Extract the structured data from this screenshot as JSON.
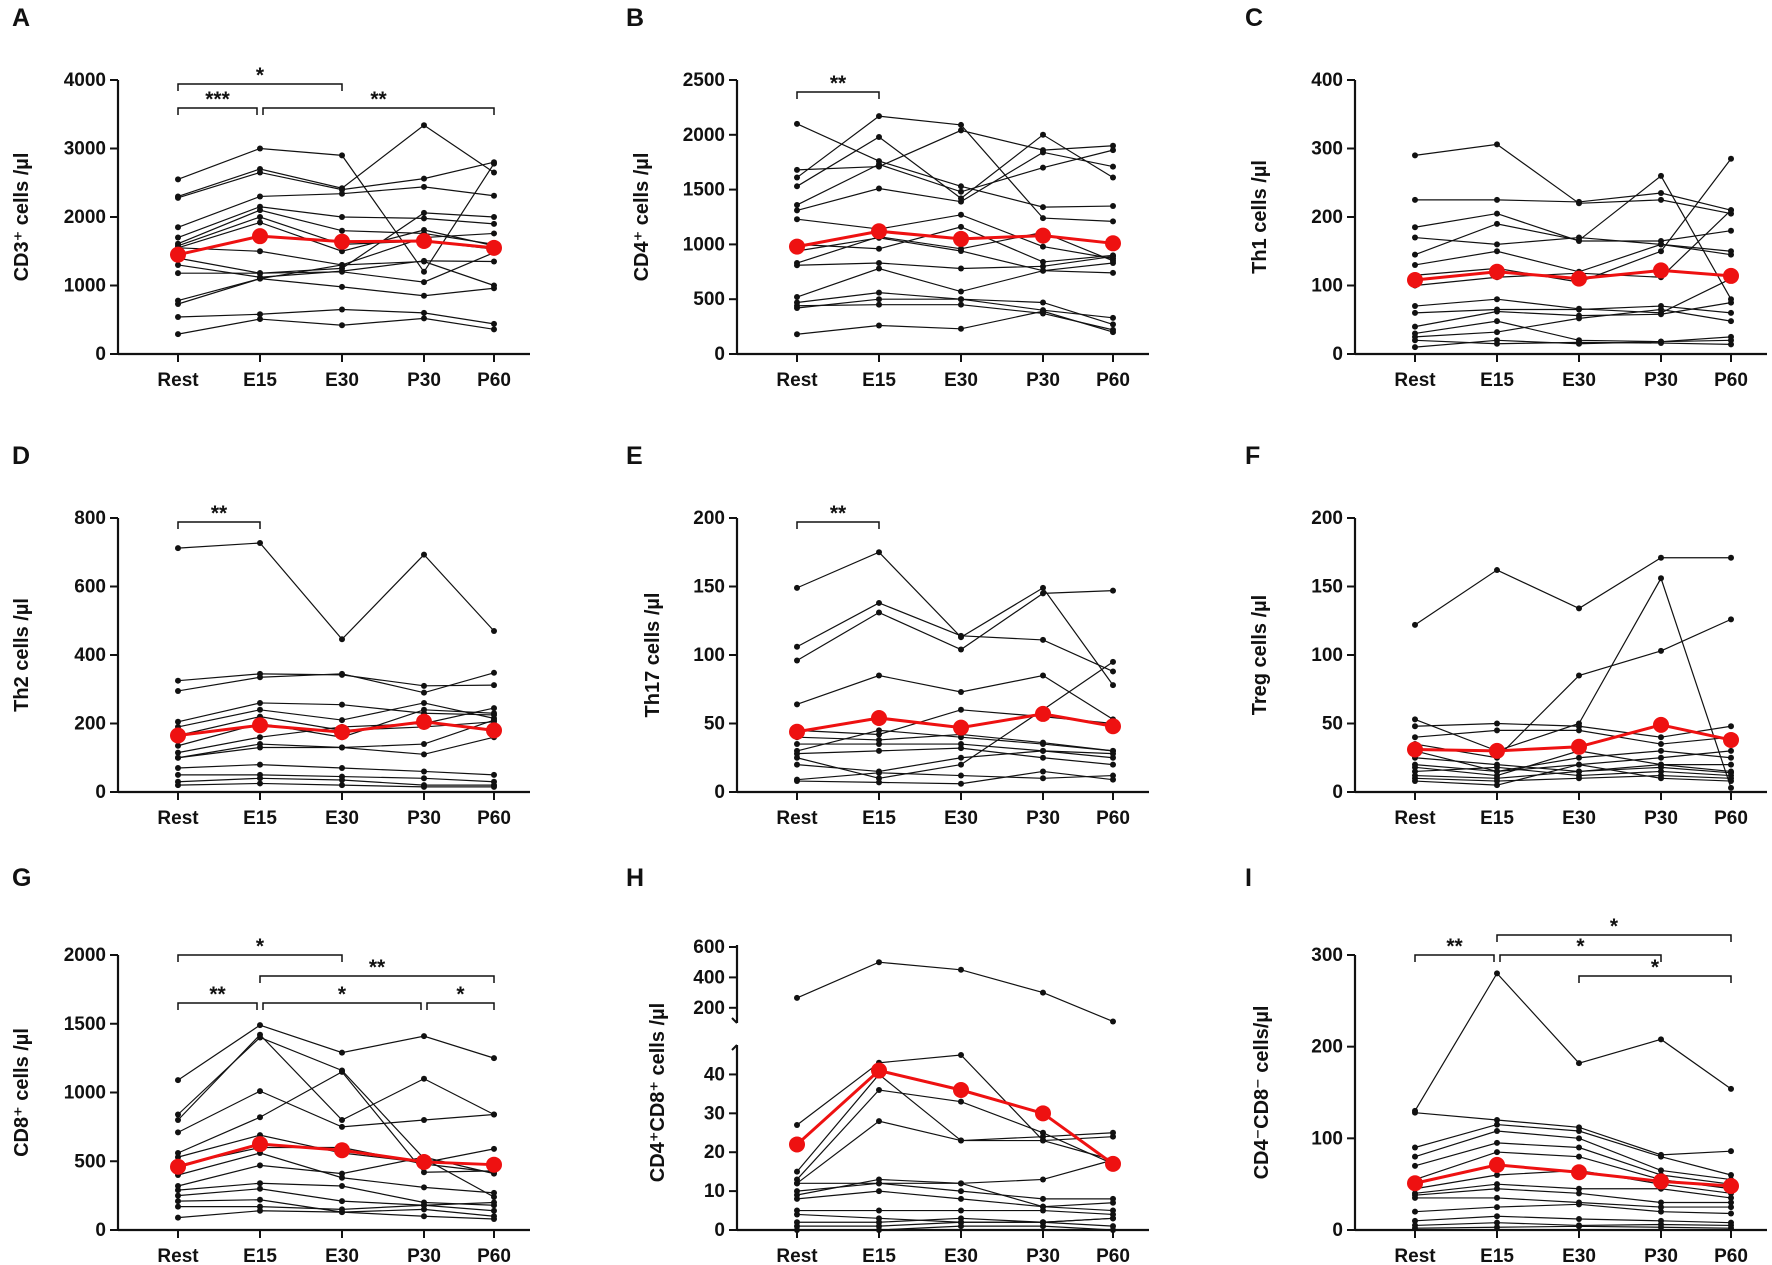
{
  "figure": {
    "title": ""
  },
  "colors": {
    "individual": "#111111",
    "mean": "#ee1111",
    "axis": "#111111"
  },
  "chart_data": [
    {
      "id": "A",
      "type": "line",
      "letter": "A",
      "ylabel": "CD3⁺ cells /µl",
      "categories": [
        "Rest",
        "E15",
        "E30",
        "P30",
        "P60"
      ],
      "ylim": [
        0,
        4000
      ],
      "yticks": [
        0,
        1000,
        2000,
        3000,
        4000
      ],
      "yticklabels": [
        "0",
        "1000",
        "2000",
        "3000",
        "4000"
      ],
      "mean": [
        1450,
        1720,
        1640,
        1650,
        1550
      ],
      "individuals": [
        [
          2550,
          3000,
          2900,
          1200,
          2780
        ],
        [
          2300,
          2700,
          2420,
          3340,
          2650
        ],
        [
          2280,
          2650,
          2400,
          2560,
          2800
        ],
        [
          1850,
          2300,
          2340,
          2440,
          2310
        ],
        [
          1700,
          2150,
          2000,
          1980,
          1900
        ],
        [
          1610,
          2100,
          1800,
          1760,
          1600
        ],
        [
          1580,
          2000,
          1600,
          1650,
          1530
        ],
        [
          1550,
          1500,
          1300,
          1350,
          1000
        ],
        [
          1400,
          1180,
          1200,
          1050,
          1480
        ],
        [
          1300,
          1120,
          1210,
          1360,
          1350
        ],
        [
          1180,
          1180,
          1250,
          2060,
          2000
        ],
        [
          1550,
          1920,
          1500,
          1810,
          1580
        ],
        [
          780,
          1100,
          980,
          850,
          960
        ],
        [
          730,
          1100,
          1300,
          1700,
          1760
        ],
        [
          540,
          580,
          650,
          600,
          440
        ],
        [
          290,
          510,
          420,
          520,
          360
        ]
      ],
      "significance": [
        {
          "from": "Rest",
          "to": "E30",
          "label": "*"
        },
        {
          "from": "Rest",
          "to": "E15",
          "label": "***"
        },
        {
          "from": "E15",
          "to": "P60",
          "label": "**"
        }
      ]
    },
    {
      "id": "B",
      "type": "line",
      "letter": "B",
      "ylabel": "CD4⁺ cells /µl",
      "categories": [
        "Rest",
        "E15",
        "E30",
        "P30",
        "P60"
      ],
      "ylim": [
        0,
        2500
      ],
      "yticks": [
        0,
        500,
        1000,
        1500,
        2000,
        2500
      ],
      "yticklabels": [
        "0",
        "500",
        "1000",
        "1500",
        "2000",
        "2500"
      ],
      "mean": [
        980,
        1120,
        1050,
        1080,
        1010
      ],
      "individuals": [
        [
          2100,
          1760,
          1530,
          1340,
          1350
        ],
        [
          1680,
          1710,
          2040,
          1860,
          1900
        ],
        [
          1610,
          2170,
          2090,
          1240,
          1210
        ],
        [
          1530,
          1980,
          1420,
          2000,
          1610
        ],
        [
          1360,
          1730,
          1480,
          1700,
          1860
        ],
        [
          1310,
          1510,
          1390,
          1840,
          1710
        ],
        [
          1230,
          1140,
          1270,
          980,
          870
        ],
        [
          1000,
          960,
          1160,
          840,
          900
        ],
        [
          940,
          1060,
          940,
          760,
          740
        ],
        [
          830,
          1070,
          960,
          1110,
          850
        ],
        [
          810,
          830,
          780,
          800,
          890
        ],
        [
          520,
          780,
          570,
          760,
          830
        ],
        [
          470,
          560,
          500,
          470,
          270
        ],
        [
          440,
          450,
          450,
          370,
          220
        ],
        [
          420,
          500,
          500,
          400,
          330
        ],
        [
          180,
          260,
          230,
          390,
          200
        ]
      ],
      "significance": [
        {
          "from": "Rest",
          "to": "E15",
          "label": "**"
        }
      ]
    },
    {
      "id": "C",
      "type": "line",
      "letter": "C",
      "ylabel": "Th1 cells /µl",
      "categories": [
        "Rest",
        "E15",
        "E30",
        "P30",
        "P60"
      ],
      "ylim": [
        0,
        400
      ],
      "yticks": [
        0,
        100,
        200,
        300,
        400
      ],
      "yticklabels": [
        "0",
        "100",
        "200",
        "300",
        "400"
      ],
      "mean": [
        108,
        120,
        110,
        122,
        114
      ],
      "individuals": [
        [
          290,
          306,
          220,
          225,
          205
        ],
        [
          225,
          225,
          222,
          235,
          210
        ],
        [
          185,
          205,
          165,
          165,
          180
        ],
        [
          170,
          160,
          170,
          160,
          150
        ],
        [
          145,
          190,
          166,
          260,
          80
        ],
        [
          130,
          150,
          120,
          160,
          145
        ],
        [
          115,
          125,
          105,
          150,
          285
        ],
        [
          100,
          112,
          118,
          112,
          210
        ],
        [
          70,
          80,
          66,
          60,
          110
        ],
        [
          60,
          65,
          65,
          70,
          60
        ],
        [
          40,
          62,
          56,
          58,
          75
        ],
        [
          30,
          48,
          20,
          18,
          20
        ],
        [
          25,
          32,
          52,
          65,
          48
        ],
        [
          20,
          15,
          17,
          16,
          14
        ],
        [
          10,
          20,
          15,
          18,
          25
        ]
      ],
      "significance": []
    },
    {
      "id": "D",
      "type": "line",
      "letter": "D",
      "ylabel": "Th2 cells /µl",
      "categories": [
        "Rest",
        "E15",
        "E30",
        "P30",
        "P60"
      ],
      "ylim": [
        0,
        800
      ],
      "yticks": [
        0,
        200,
        400,
        600,
        800
      ],
      "yticklabels": [
        "0",
        "200",
        "400",
        "600",
        "800"
      ],
      "mean": [
        165,
        195,
        175,
        205,
        180
      ],
      "individuals": [
        [
          712,
          727,
          446,
          693,
          470
        ],
        [
          325,
          345,
          342,
          310,
          312
        ],
        [
          295,
          335,
          345,
          290,
          348
        ],
        [
          205,
          260,
          255,
          230,
          225
        ],
        [
          190,
          240,
          210,
          260,
          215
        ],
        [
          165,
          220,
          180,
          190,
          205
        ],
        [
          135,
          200,
          160,
          240,
          230
        ],
        [
          115,
          160,
          190,
          200,
          245
        ],
        [
          100,
          140,
          130,
          140,
          210
        ],
        [
          100,
          130,
          130,
          110,
          160
        ],
        [
          70,
          80,
          70,
          60,
          50
        ],
        [
          50,
          50,
          45,
          40,
          30
        ],
        [
          30,
          40,
          35,
          20,
          20
        ],
        [
          20,
          25,
          20,
          15,
          15
        ]
      ],
      "significance": [
        {
          "from": "Rest",
          "to": "E15",
          "label": "**"
        }
      ]
    },
    {
      "id": "E",
      "type": "line",
      "letter": "E",
      "ylabel": "Th17 cells /µl",
      "categories": [
        "Rest",
        "E15",
        "E30",
        "P30",
        "P60"
      ],
      "ylim": [
        0,
        200
      ],
      "yticks": [
        0,
        50,
        100,
        150,
        200
      ],
      "yticklabels": [
        "0",
        "50",
        "100",
        "150",
        "200"
      ],
      "mean": [
        44,
        54,
        47,
        57,
        48
      ],
      "individuals": [
        [
          149,
          175,
          113,
          149,
          78
        ],
        [
          106,
          138,
          114,
          111,
          88
        ],
        [
          96,
          131,
          104,
          145,
          147
        ],
        [
          64,
          85,
          73,
          85,
          53
        ],
        [
          45,
          42,
          60,
          55,
          50
        ],
        [
          40,
          38,
          42,
          36,
          30
        ],
        [
          35,
          35,
          35,
          30,
          25
        ],
        [
          30,
          45,
          40,
          35,
          30
        ],
        [
          28,
          30,
          32,
          25,
          20
        ],
        [
          25,
          10,
          20,
          60,
          95
        ],
        [
          20,
          15,
          25,
          30,
          28
        ],
        [
          9,
          14,
          12,
          10,
          12
        ],
        [
          8,
          7,
          6,
          15,
          9
        ]
      ],
      "significance": [
        {
          "from": "Rest",
          "to": "E15",
          "label": "**"
        }
      ]
    },
    {
      "id": "F",
      "type": "line",
      "letter": "F",
      "ylabel": "Treg cells /µl",
      "categories": [
        "Rest",
        "E15",
        "E30",
        "P30",
        "P60"
      ],
      "ylim": [
        0,
        200
      ],
      "yticks": [
        0,
        50,
        100,
        150,
        200
      ],
      "yticklabels": [
        "0",
        "50",
        "100",
        "150",
        "200"
      ],
      "mean": [
        31,
        30,
        33,
        49,
        38
      ],
      "individuals": [
        [
          122,
          162,
          134,
          171,
          171
        ],
        [
          53,
          30,
          50,
          156,
          3
        ],
        [
          48,
          50,
          48,
          40,
          48
        ],
        [
          40,
          45,
          45,
          35,
          40
        ],
        [
          35,
          25,
          85,
          103,
          126
        ],
        [
          30,
          15,
          20,
          25,
          30
        ],
        [
          25,
          20,
          15,
          20,
          20
        ],
        [
          20,
          15,
          25,
          30,
          25
        ],
        [
          18,
          12,
          30,
          20,
          15
        ],
        [
          15,
          18,
          12,
          15,
          12
        ],
        [
          12,
          10,
          15,
          18,
          14
        ],
        [
          10,
          8,
          10,
          12,
          10
        ],
        [
          8,
          5,
          20,
          10,
          8
        ]
      ],
      "significance": []
    },
    {
      "id": "G",
      "type": "line",
      "letter": "G",
      "ylabel": "CD8⁺ cells /µl",
      "categories": [
        "Rest",
        "E15",
        "E30",
        "P30",
        "P60"
      ],
      "ylim": [
        0,
        2000
      ],
      "yticks": [
        0,
        500,
        1000,
        1500,
        2000
      ],
      "yticklabels": [
        "0",
        "500",
        "1000",
        "1500",
        "2000"
      ],
      "mean": [
        460,
        625,
        580,
        495,
        475
      ],
      "individuals": [
        [
          1090,
          1490,
          1290,
          1410,
          1250
        ],
        [
          840,
          1400,
          1160,
          520,
          240
        ],
        [
          800,
          1420,
          800,
          1100,
          840
        ],
        [
          710,
          1010,
          750,
          800,
          840
        ],
        [
          560,
          820,
          1150,
          420,
          430
        ],
        [
          530,
          690,
          560,
          490,
          590
        ],
        [
          470,
          600,
          600,
          480,
          420
        ],
        [
          400,
          560,
          380,
          310,
          270
        ],
        [
          320,
          470,
          410,
          530,
          410
        ],
        [
          290,
          340,
          320,
          200,
          180
        ],
        [
          250,
          300,
          210,
          180,
          140
        ],
        [
          210,
          220,
          130,
          100,
          80
        ],
        [
          170,
          170,
          150,
          180,
          200
        ],
        [
          90,
          140,
          130,
          150,
          100
        ]
      ],
      "significance": [
        {
          "from": "Rest",
          "to": "E30",
          "label": "*"
        },
        {
          "from": "E15",
          "to": "P60",
          "label": "**"
        },
        {
          "from": "Rest",
          "to": "E15",
          "label": "**"
        },
        {
          "from": "E15",
          "to": "P30",
          "label": "*"
        },
        {
          "from": "P30",
          "to": "P60",
          "label": "*"
        }
      ]
    },
    {
      "id": "H",
      "type": "line",
      "letter": "H",
      "ylabel": "CD4⁺CD8⁺ cells /µl",
      "categories": [
        "Rest",
        "E15",
        "E30",
        "P30",
        "P60"
      ],
      "broken_axis": true,
      "lower_range": [
        0,
        45
      ],
      "upper_range": [
        100,
        600
      ],
      "yticks_lower": [
        0,
        10,
        20,
        30,
        40
      ],
      "yticks_upper": [
        200,
        400,
        600
      ],
      "yticklabels_lower": [
        "0",
        "10",
        "20",
        "30",
        "40"
      ],
      "yticklabels_upper": [
        "200",
        "400",
        "600"
      ],
      "mean": [
        22,
        41,
        36,
        30,
        17
      ],
      "individuals": [
        [
          265,
          500,
          450,
          300,
          110
        ],
        [
          27,
          43,
          45,
          23,
          24
        ],
        [
          15,
          40,
          23,
          24,
          25
        ],
        [
          13,
          36,
          33,
          25,
          17
        ],
        [
          12,
          28,
          23,
          23,
          18
        ],
        [
          12,
          12,
          12,
          13,
          18
        ],
        [
          10,
          12,
          10,
          8,
          8
        ],
        [
          9,
          13,
          12,
          6,
          5
        ],
        [
          8,
          10,
          8,
          6,
          7
        ],
        [
          5,
          5,
          5,
          5,
          4
        ],
        [
          4,
          3,
          2,
          2,
          3
        ],
        [
          2,
          2,
          3,
          2,
          1
        ],
        [
          1,
          1,
          2,
          2,
          3
        ],
        [
          0,
          0,
          1,
          1,
          0
        ]
      ],
      "significance": []
    },
    {
      "id": "I",
      "type": "line",
      "letter": "I",
      "ylabel": "CD4⁻CD8⁻ cells/µl",
      "categories": [
        "Rest",
        "E15",
        "E30",
        "P30",
        "P60"
      ],
      "ylim": [
        0,
        300
      ],
      "yticks": [
        0,
        100,
        200,
        300
      ],
      "yticklabels": [
        "0",
        "100",
        "200",
        "300"
      ],
      "mean": [
        51,
        71,
        63,
        53,
        48
      ],
      "individuals": [
        [
          130,
          280,
          182,
          208,
          154
        ],
        [
          128,
          120,
          112,
          82,
          86
        ],
        [
          90,
          115,
          108,
          80,
          60
        ],
        [
          80,
          108,
          100,
          65,
          55
        ],
        [
          70,
          95,
          90,
          60,
          50
        ],
        [
          55,
          85,
          80,
          55,
          45
        ],
        [
          45,
          60,
          65,
          50,
          40
        ],
        [
          40,
          50,
          45,
          45,
          35
        ],
        [
          38,
          45,
          40,
          30,
          30
        ],
        [
          35,
          35,
          30,
          25,
          25
        ],
        [
          20,
          25,
          28,
          20,
          18
        ],
        [
          10,
          15,
          12,
          10,
          8
        ],
        [
          5,
          8,
          5,
          6,
          5
        ],
        [
          2,
          3,
          4,
          3,
          2
        ]
      ],
      "significance": [
        {
          "from": "Rest",
          "to": "E15",
          "label": "**"
        },
        {
          "from": "E15",
          "to": "P60",
          "label": "*"
        },
        {
          "from": "E15",
          "to": "P30",
          "label": "*"
        },
        {
          "from": "E30",
          "to": "P60",
          "label": "*"
        }
      ]
    }
  ]
}
